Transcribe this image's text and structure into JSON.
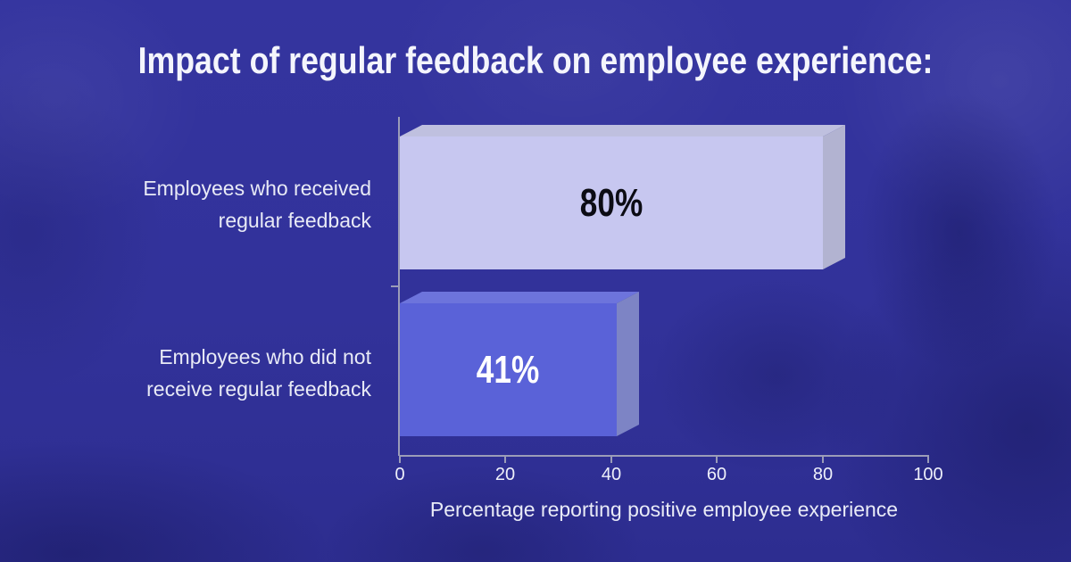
{
  "title": "Impact of regular feedback on employee experience:",
  "chart_data": {
    "type": "bar",
    "orientation": "horizontal",
    "title": "Impact of regular feedback on employee experience:",
    "categories": [
      "Employees who received regular feedback",
      "Employees who did not receive regular feedback"
    ],
    "values": [
      80,
      41
    ],
    "xlabel": "Percentage reporting positive employee experience",
    "ylabel": "",
    "xlim": [
      0,
      100
    ],
    "xticks": [
      0,
      20,
      40,
      60,
      80,
      100
    ],
    "grid": false,
    "legend": false,
    "bars": [
      {
        "label_line1": "Employees who received",
        "label_line2": "regular feedback",
        "value": 80,
        "value_label": "80%",
        "front_color": "#c7c7f0",
        "top_color": "#bfc0df",
        "side_color": "#b2b3d1",
        "value_text_color": "#0c0c14"
      },
      {
        "label_line1": "Employees who did not",
        "label_line2": "receive regular feedback",
        "value": 41,
        "value_label": "41%",
        "front_color": "#5a62d8",
        "top_color": "#6d74dc",
        "side_color": "#7d84c5",
        "value_text_color": "#ffffff"
      }
    ]
  },
  "colors": {
    "background": "#32329b",
    "title_text": "#f4f5fc",
    "category_text": "#e8eaf6",
    "axis_line": "#9b9cb8",
    "tick_text": "#eef0fa",
    "axis_title_text": "#e9ebf7"
  }
}
